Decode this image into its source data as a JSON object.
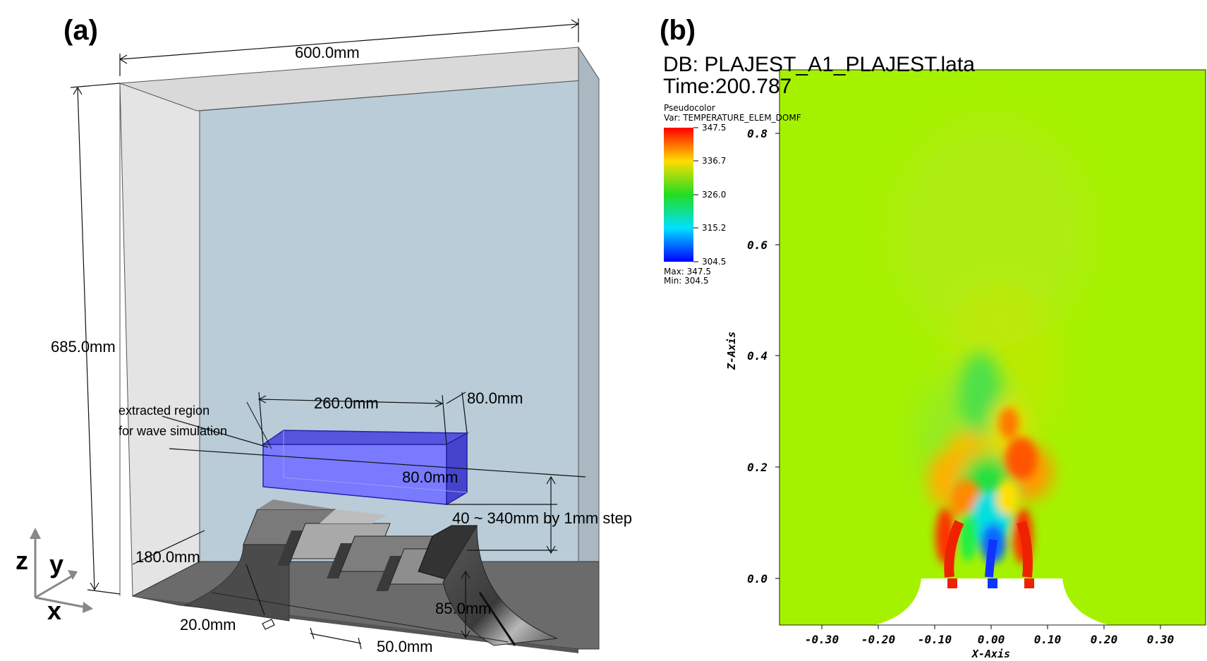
{
  "panel_a": {
    "label": "(a)",
    "dims": {
      "width": "600.0mm",
      "height": "685.0mm",
      "region_length": "260.0mm",
      "region_width": "80.0mm",
      "region_height": "80.0mm",
      "gap": "40 ~ 340mm by 1mm step",
      "depth": "180.0mm",
      "slot": "20.0mm",
      "pitch": "50.0mm",
      "nozzle_height": "85.0mm"
    },
    "annotation_line1": "extracted region",
    "annotation_line2": "for wave simulation",
    "axes": {
      "z": "z",
      "y": "y",
      "x": "x"
    }
  },
  "panel_b": {
    "label": "(b)",
    "db_line": "DB: PLAJEST_A1_PLAJEST.lata",
    "time_line": "Time:200.787",
    "legend": {
      "title": "Pseudocolor",
      "var": "Var: TEMPERATURE_ELEM_DOMF",
      "ticks": [
        "347.5",
        "336.7",
        "326.0",
        "315.2",
        "304.5"
      ],
      "max": "Max:  347.5",
      "min": "Min:  304.5"
    },
    "x_axis_label": "X-Axis",
    "z_axis_label": "Z-Axis",
    "x_ticks": [
      "-0.30",
      "-0.20",
      "-0.10",
      "0.00",
      "0.10",
      "0.20",
      "0.30"
    ],
    "z_ticks": [
      "0.8",
      "0.6",
      "0.4",
      "0.2",
      "0.0"
    ],
    "colors": {
      "background_field": "#a5f200",
      "hot": "#ee2200",
      "cold": "#1133ff",
      "mid": "#22dd44"
    }
  }
}
